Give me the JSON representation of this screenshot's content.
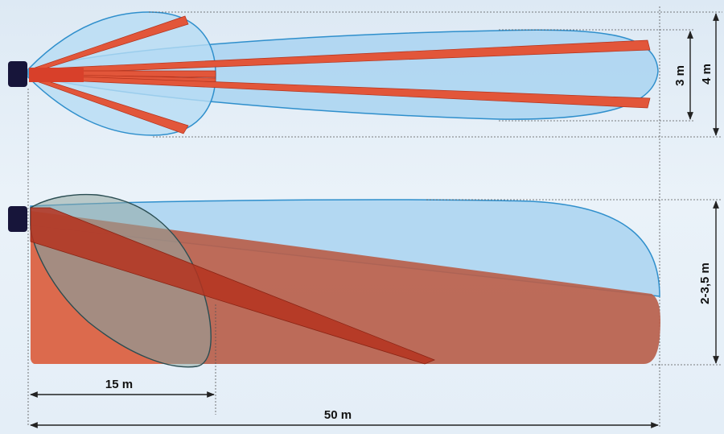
{
  "colors": {
    "coverage_blue": "#a9d4f1",
    "coverage_outline": "#2f8fcc",
    "beam_red": "#e2563a",
    "ground_zone": "#b85f4b",
    "sensor": "#17153a",
    "dimension_line": "#222222"
  },
  "top_view": {
    "sensor_icon": "detector-box-icon",
    "dim_3m": "3 m",
    "dim_4m": "4 m"
  },
  "side_view": {
    "sensor_icon": "detector-box-icon",
    "dim_height": "2-3,5 m",
    "dim_15m": "15 m",
    "dim_50m": "50 m"
  }
}
